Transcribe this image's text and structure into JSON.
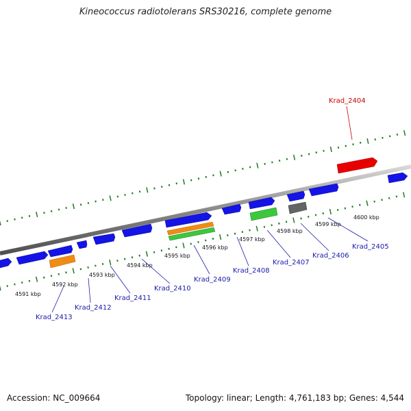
{
  "title": "Kineococcus radiotolerans SRS30216, complete genome",
  "footer": {
    "accession": "Accession: NC_009664",
    "summary": "Topology: linear; Length: 4,761,183 bp; Genes: 4,544"
  },
  "colors": {
    "forward_gene": "#1414e6",
    "highlight_gene": "#e60000",
    "orange_gene": "#f08c14",
    "green_gene": "#3cc83c",
    "gray_gene": "#646464",
    "track": "#8a8a8a",
    "tick": "#1f7a1f",
    "label": "#1a1aa8",
    "highlight_label": "#cc0000"
  },
  "kbp_marks": [
    {
      "text": "4591 kbp",
      "kbp": 4591
    },
    {
      "text": "4592 kbp",
      "kbp": 4592
    },
    {
      "text": "4593 kbp",
      "kbp": 4593
    },
    {
      "text": "4594 kbp",
      "kbp": 4594
    },
    {
      "text": "4595 kbp",
      "kbp": 4595
    },
    {
      "text": "4596 kbp",
      "kbp": 4596
    },
    {
      "text": "4597 kbp",
      "kbp": 4597
    },
    {
      "text": "4598 kbp",
      "kbp": 4598
    },
    {
      "text": "4599 kbp",
      "kbp": 4599
    },
    {
      "text": "4600 kbp",
      "kbp": 4600
    }
  ],
  "gene_labels": [
    {
      "text": "Krad_2404",
      "highlight": true
    },
    {
      "text": "Krad_2405",
      "highlight": false
    },
    {
      "text": "Krad_2406",
      "highlight": false
    },
    {
      "text": "Krad_2407",
      "highlight": false
    },
    {
      "text": "Krad_2408",
      "highlight": false
    },
    {
      "text": "Krad_2409",
      "highlight": false
    },
    {
      "text": "Krad_2410",
      "highlight": false
    },
    {
      "text": "Krad_2411",
      "highlight": false
    },
    {
      "text": "Krad_2412",
      "highlight": false
    },
    {
      "text": "Krad_2413",
      "highlight": false
    }
  ]
}
